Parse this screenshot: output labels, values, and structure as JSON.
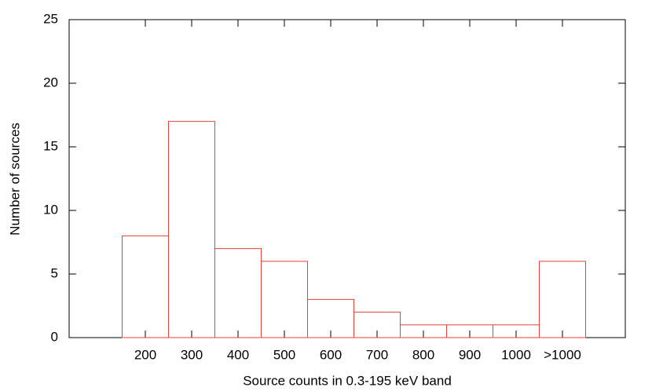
{
  "chart_data": {
    "type": "bar",
    "xlabel": "Source counts in 0.3-195 keV band",
    "ylabel": "Number of sources",
    "categories": [
      "200",
      "300",
      "400",
      "500",
      "600",
      "700",
      "800",
      "900",
      "1000",
      ">1000"
    ],
    "values": [
      8,
      17,
      7,
      6,
      3,
      2,
      1,
      1,
      1,
      6
    ],
    "color": "#e8413c",
    "ylim": [
      0,
      25
    ],
    "yticks": [
      0,
      5,
      10,
      15,
      20,
      25
    ]
  }
}
